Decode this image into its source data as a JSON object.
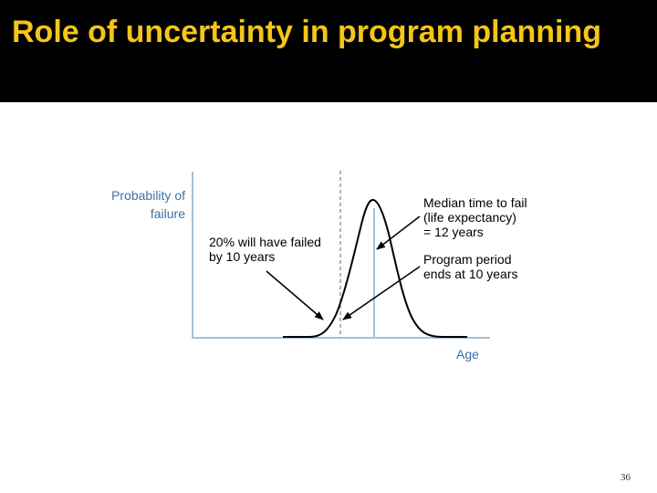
{
  "slide": {
    "title": "Role of uncertainty in program planning",
    "number": "36"
  },
  "diagram": {
    "y_axis_label": [
      "Probability of",
      "failure"
    ],
    "x_axis_label": "Age",
    "annotation_left": [
      "20% will have failed",
      "by 10 years"
    ],
    "annotation_median": [
      "Median time to fail",
      "(life expectancy)",
      "= 12 years"
    ],
    "annotation_program": [
      "Program period",
      "ends at 10 years"
    ]
  },
  "colors": {
    "title": "#f5c518",
    "title_bar": "#000000",
    "axis": "#a9bfd3",
    "axis_label": "#3d6fa5",
    "curve": "#000000"
  }
}
